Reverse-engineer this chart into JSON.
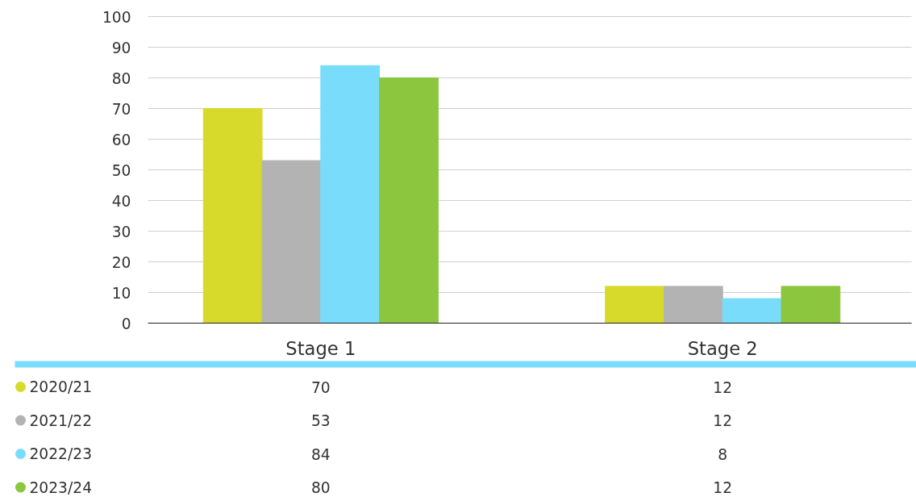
{
  "chart_data": {
    "type": "bar",
    "categories": [
      "Stage 1",
      "Stage 2"
    ],
    "series": [
      {
        "name": "2020/21",
        "color": "#d7da2b",
        "values": [
          70,
          12
        ]
      },
      {
        "name": "2021/22",
        "color": "#b3b3b3",
        "values": [
          53,
          12
        ]
      },
      {
        "name": "2022/23",
        "color": "#7adcfb",
        "values": [
          84,
          8
        ]
      },
      {
        "name": "2023/24",
        "color": "#8cc63f",
        "values": [
          80,
          12
        ]
      }
    ],
    "ylim": [
      0,
      100
    ],
    "yticks": [
      0,
      10,
      20,
      30,
      40,
      50,
      60,
      70,
      80,
      90,
      100
    ],
    "grid": "y",
    "legend": "bottom left",
    "data_labels": true
  }
}
